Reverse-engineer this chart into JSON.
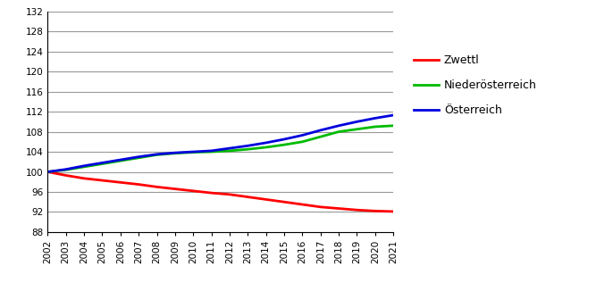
{
  "years": [
    2002,
    2003,
    2004,
    2005,
    2006,
    2007,
    2008,
    2009,
    2010,
    2011,
    2012,
    2013,
    2014,
    2015,
    2016,
    2017,
    2018,
    2019,
    2020,
    2021
  ],
  "zwettl": [
    100.0,
    99.3,
    98.7,
    98.3,
    97.9,
    97.5,
    97.0,
    96.6,
    96.2,
    95.8,
    95.5,
    95.0,
    94.5,
    94.0,
    93.5,
    93.0,
    92.7,
    92.4,
    92.2,
    92.1
  ],
  "niederoesterreich": [
    100.0,
    100.4,
    101.0,
    101.6,
    102.2,
    102.8,
    103.4,
    103.7,
    103.9,
    104.0,
    104.2,
    104.5,
    104.9,
    105.4,
    106.0,
    107.0,
    108.0,
    108.5,
    109.0,
    109.2
  ],
  "oesterreich": [
    100.0,
    100.5,
    101.2,
    101.8,
    102.4,
    103.0,
    103.5,
    103.8,
    104.0,
    104.2,
    104.7,
    105.2,
    105.8,
    106.5,
    107.3,
    108.3,
    109.2,
    110.0,
    110.7,
    111.3
  ],
  "zwettl_color": "#ff0000",
  "niederoesterreich_color": "#00bb00",
  "oesterreich_color": "#0000dd",
  "line_width": 2.0,
  "ylim": [
    88,
    132
  ],
  "yticks": [
    88,
    92,
    96,
    100,
    104,
    108,
    112,
    116,
    120,
    124,
    128,
    132
  ],
  "legend_labels": [
    "Zwettl",
    "Niederösterreich",
    "Österreich"
  ],
  "background_color": "#ffffff",
  "grid_color": "#999999",
  "spine_color": "#000000"
}
